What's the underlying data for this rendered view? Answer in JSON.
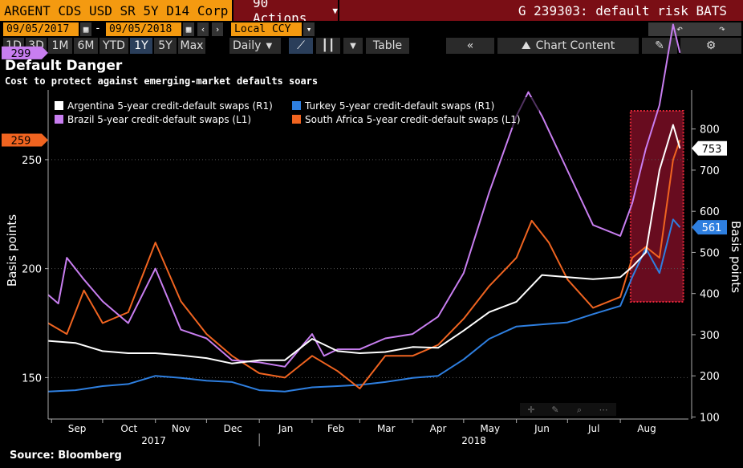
{
  "toolbar": {
    "ticker": "ARGENT CDS USD SR 5Y D14 Corp",
    "actions_label": "90 Actions",
    "window_title": "G 239303: default risk BATS",
    "start_date": "09/05/2017",
    "end_date": "09/05/2018",
    "date_separator": "-",
    "currency": "Local CCY",
    "periods": [
      "1D",
      "3D",
      "1M",
      "6M",
      "YTD",
      "1Y",
      "5Y",
      "Max"
    ],
    "active_period": "1Y",
    "frequency": "Daily",
    "table_label": "Table",
    "chart_content_label": "Chart Content"
  },
  "chart_data": {
    "type": "line",
    "title": "Default Danger",
    "subtitle": "Cost to protect against emerging-market defaults soars",
    "ylabel_left": "Basis points",
    "ylabel_right": "Basis points",
    "source": "Source: Bloomberg",
    "left_axis": {
      "range": [
        131,
        282
      ],
      "ticks": [
        150,
        200,
        250
      ]
    },
    "right_axis": {
      "range": [
        95,
        895
      ],
      "ticks": [
        100,
        200,
        300,
        400,
        500,
        600,
        700,
        800
      ]
    },
    "x_months": [
      "Sep",
      "Oct",
      "Nov",
      "Dec",
      "Jan",
      "Feb",
      "Mar",
      "Apr",
      "May",
      "Jun",
      "Jul",
      "Aug"
    ],
    "x_years": [
      "2017",
      "2018"
    ],
    "x_range": [
      "2017-08-30",
      "2018-09-10"
    ],
    "legend": [
      {
        "name": "Argentina 5-year credit-default swaps (R1)",
        "color": "#ffffff"
      },
      {
        "name": "Turkey 5-year credit-default swaps (R1)",
        "color": "#2e7fe0"
      },
      {
        "name": "Brazil 5-year credit-default swaps (L1)",
        "color": "#c87ef0"
      },
      {
        "name": "South Africa 5-year credit-default swaps (L1)",
        "color": "#f06420"
      }
    ],
    "last_value_labels": [
      {
        "value": "299",
        "axis": "left",
        "color": "#c87ef0"
      },
      {
        "value": "259",
        "axis": "left",
        "color": "#f06420"
      },
      {
        "value": "753",
        "axis": "right",
        "color": "#ffffff"
      },
      {
        "value": "561",
        "axis": "right",
        "color": "#2e7fe0"
      }
    ],
    "highlight": {
      "x_start": "2018-08-07",
      "x_end": "2018-09-07",
      "color": "#7a0e25"
    },
    "series": [
      {
        "name": "Argentina 5-year credit-default swaps (R1)",
        "axis": "right",
        "color": "#ffffff",
        "x": [
          "2017-08-30",
          "2017-09-15",
          "2017-10-01",
          "2017-10-16",
          "2017-11-01",
          "2017-11-16",
          "2017-12-01",
          "2017-12-16",
          "2018-01-01",
          "2018-01-16",
          "2018-02-01",
          "2018-02-16",
          "2018-03-01",
          "2018-03-16",
          "2018-04-01",
          "2018-04-16",
          "2018-05-01",
          "2018-05-16",
          "2018-06-01",
          "2018-06-16",
          "2018-07-01",
          "2018-07-16",
          "2018-08-01",
          "2018-08-08",
          "2018-08-16",
          "2018-08-24",
          "2018-09-01",
          "2018-09-05"
        ],
        "y": [
          285,
          280,
          260,
          255,
          255,
          250,
          243,
          230,
          238,
          238,
          290,
          260,
          255,
          258,
          270,
          268,
          310,
          355,
          380,
          445,
          440,
          435,
          440,
          465,
          500,
          700,
          810,
          753
        ]
      },
      {
        "name": "Turkey 5-year credit-default swaps (R1)",
        "axis": "right",
        "color": "#2e7fe0",
        "x": [
          "2017-08-30",
          "2017-09-15",
          "2017-10-01",
          "2017-10-16",
          "2017-11-01",
          "2017-11-16",
          "2017-12-01",
          "2017-12-16",
          "2018-01-01",
          "2018-01-16",
          "2018-02-01",
          "2018-02-16",
          "2018-03-01",
          "2018-03-16",
          "2018-04-01",
          "2018-04-16",
          "2018-05-01",
          "2018-05-16",
          "2018-06-01",
          "2018-06-16",
          "2018-07-01",
          "2018-07-16",
          "2018-08-01",
          "2018-08-08",
          "2018-08-16",
          "2018-08-24",
          "2018-09-01",
          "2018-09-05"
        ],
        "y": [
          162,
          165,
          175,
          180,
          200,
          195,
          188,
          185,
          165,
          162,
          172,
          175,
          178,
          185,
          195,
          200,
          240,
          290,
          320,
          325,
          330,
          350,
          370,
          440,
          510,
          450,
          580,
          561
        ]
      },
      {
        "name": "Brazil 5-year credit-default swaps (L1)",
        "axis": "left",
        "color": "#c87ef0",
        "x": [
          "2017-08-30",
          "2017-09-05",
          "2017-09-10",
          "2017-09-20",
          "2017-10-01",
          "2017-10-16",
          "2017-11-01",
          "2017-11-16",
          "2017-12-01",
          "2017-12-16",
          "2018-01-01",
          "2018-01-16",
          "2018-02-01",
          "2018-02-08",
          "2018-02-16",
          "2018-03-01",
          "2018-03-16",
          "2018-04-01",
          "2018-04-16",
          "2018-05-01",
          "2018-05-16",
          "2018-06-01",
          "2018-06-08",
          "2018-06-16",
          "2018-07-01",
          "2018-07-16",
          "2018-08-01",
          "2018-08-08",
          "2018-08-16",
          "2018-08-24",
          "2018-09-01",
          "2018-09-05"
        ],
        "y": [
          188,
          184,
          205,
          195,
          185,
          175,
          200,
          172,
          168,
          158,
          157,
          155,
          170,
          160,
          163,
          163,
          168,
          170,
          178,
          198,
          235,
          270,
          281,
          270,
          245,
          220,
          215,
          230,
          255,
          275,
          312,
          299
        ]
      },
      {
        "name": "South Africa 5-year credit-default swaps (L1)",
        "axis": "left",
        "color": "#f06420",
        "x": [
          "2017-08-30",
          "2017-09-10",
          "2017-09-20",
          "2017-10-01",
          "2017-10-16",
          "2017-11-01",
          "2017-11-16",
          "2017-12-01",
          "2017-12-16",
          "2018-01-01",
          "2018-01-16",
          "2018-02-01",
          "2018-02-16",
          "2018-03-01",
          "2018-03-16",
          "2018-04-01",
          "2018-04-16",
          "2018-05-01",
          "2018-05-16",
          "2018-06-01",
          "2018-06-10",
          "2018-06-20",
          "2018-07-01",
          "2018-07-16",
          "2018-08-01",
          "2018-08-08",
          "2018-08-16",
          "2018-08-24",
          "2018-09-01",
          "2018-09-05"
        ],
        "y": [
          175,
          170,
          190,
          175,
          180,
          212,
          185,
          170,
          160,
          152,
          150,
          160,
          153,
          145,
          160,
          160,
          165,
          177,
          192,
          205,
          222,
          212,
          195,
          182,
          187,
          205,
          210,
          205,
          250,
          259
        ]
      }
    ]
  }
}
